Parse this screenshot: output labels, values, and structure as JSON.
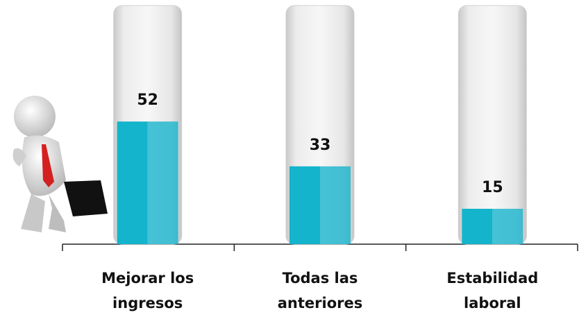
{
  "chart_data": {
    "type": "bar",
    "categories": [
      "Mejorar los ingresos",
      "Todas las anteriores",
      "Estabilidad laboral"
    ],
    "values": [
      52,
      33,
      15
    ],
    "color": "#13b4cc",
    "ylim": [
      0,
      100
    ]
  }
}
